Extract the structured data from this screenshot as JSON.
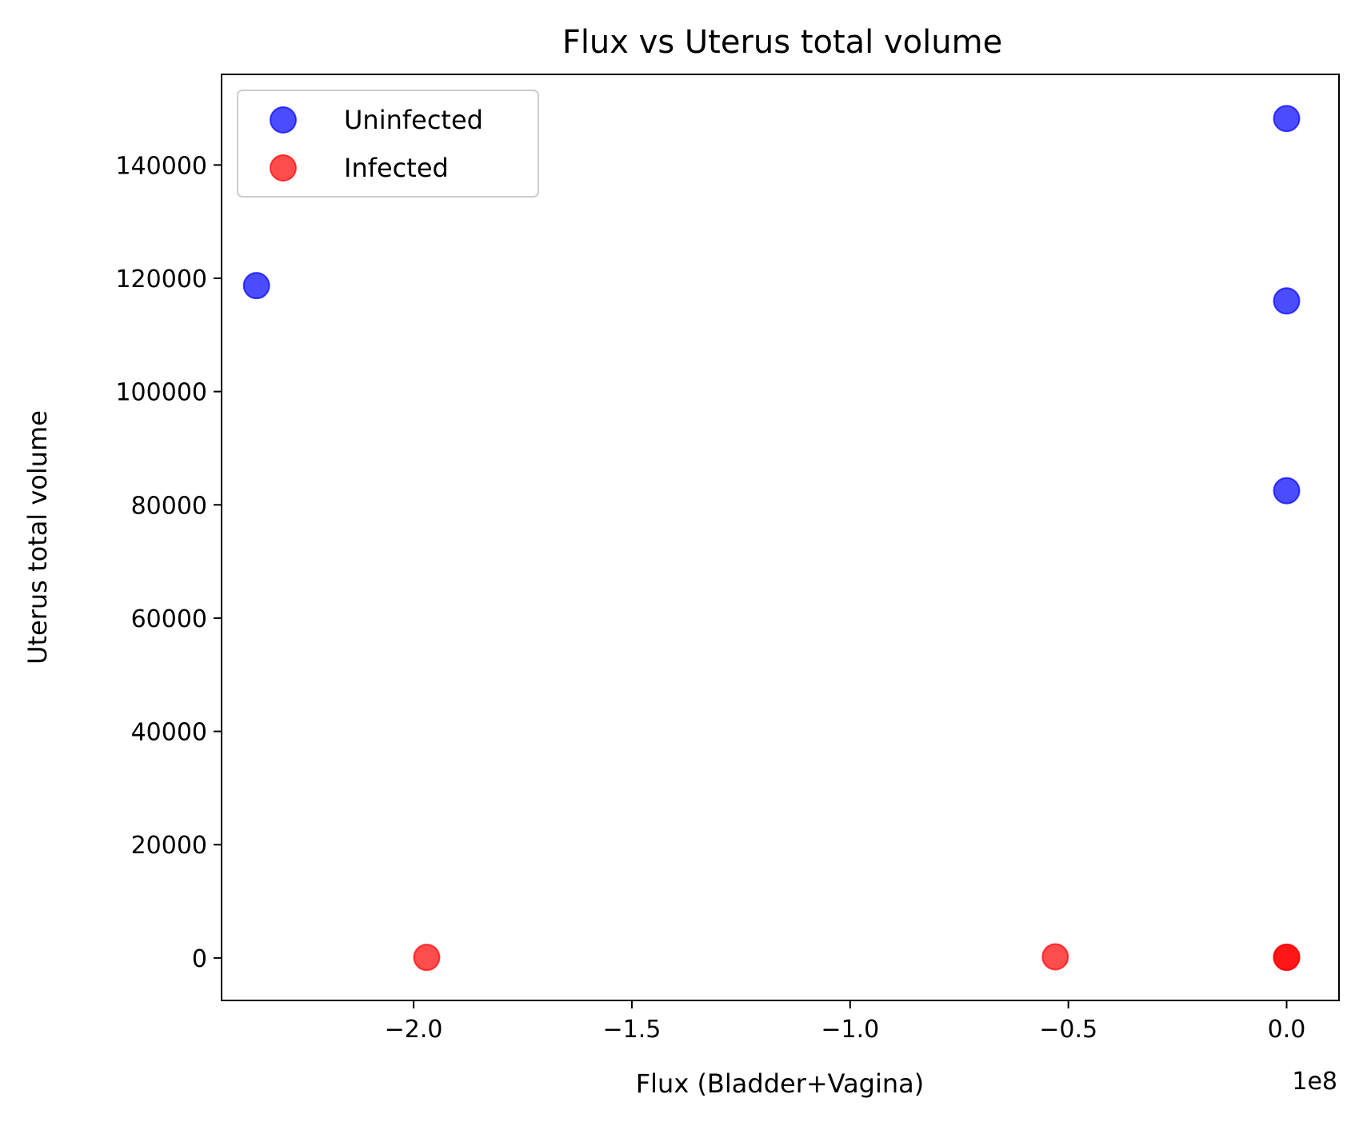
{
  "chart_data": {
    "type": "scatter",
    "title": "Flux vs Uterus total volume",
    "xlabel": "Flux (Bladder+Vagina)",
    "ylabel": "Uterus total volume",
    "x_offset_text": "1e8",
    "x_scale": 100000000,
    "xlim": [
      -2.44,
      0.12
    ],
    "ylim": [
      -7500,
      156000
    ],
    "x_ticks": [
      -2.0,
      -1.5,
      -1.0,
      -0.5,
      0.0
    ],
    "x_tick_labels": [
      "−2.0",
      "−1.5",
      "−1.0",
      "−0.5",
      "0.0"
    ],
    "y_ticks": [
      0,
      20000,
      40000,
      60000,
      80000,
      100000,
      120000,
      140000
    ],
    "y_tick_labels": [
      "0",
      "20000",
      "40000",
      "60000",
      "80000",
      "100000",
      "120000",
      "140000"
    ],
    "grid": false,
    "legend_position": "top-left",
    "series": [
      {
        "name": "Uninfected",
        "color": "#0000ff",
        "points": [
          {
            "x": -2.36,
            "y": 118700
          },
          {
            "x": 0.0,
            "y": 148200
          },
          {
            "x": 0.0,
            "y": 116000
          },
          {
            "x": 0.0,
            "y": 82500
          }
        ]
      },
      {
        "name": "Infected",
        "color": "#ff0000",
        "points": [
          {
            "x": -1.97,
            "y": 100
          },
          {
            "x": -0.53,
            "y": 200
          },
          {
            "x": 0.0,
            "y": 150
          },
          {
            "x": 0.0,
            "y": 100
          }
        ]
      }
    ]
  }
}
